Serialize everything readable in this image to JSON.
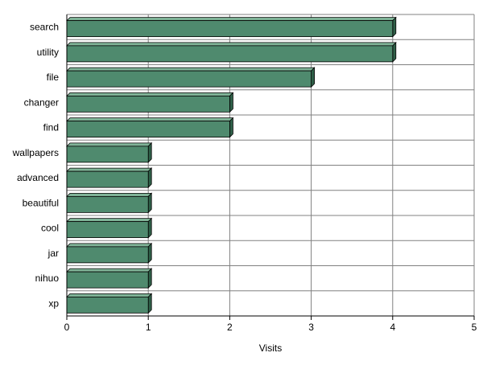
{
  "chart_data": {
    "type": "bar",
    "orientation": "horizontal",
    "categories": [
      "search",
      "utility",
      "file",
      "changer",
      "find",
      "wallpapers",
      "advanced",
      "beautiful",
      "cool",
      "jar",
      "nihuo",
      "xp"
    ],
    "values": [
      4,
      4,
      3,
      2,
      2,
      1,
      1,
      1,
      1,
      1,
      1,
      1
    ],
    "xlabel": "Visits",
    "ylabel": "",
    "xlim": [
      0,
      5
    ],
    "xticks": [
      "0",
      "1",
      "2",
      "3",
      "4",
      "5"
    ],
    "grid": true,
    "legend": "none",
    "bar_color": "#4f8a6e",
    "bar_side_color": "#2f5f48",
    "bar_top_color": "#7fb397",
    "grid_color": "#808080"
  }
}
